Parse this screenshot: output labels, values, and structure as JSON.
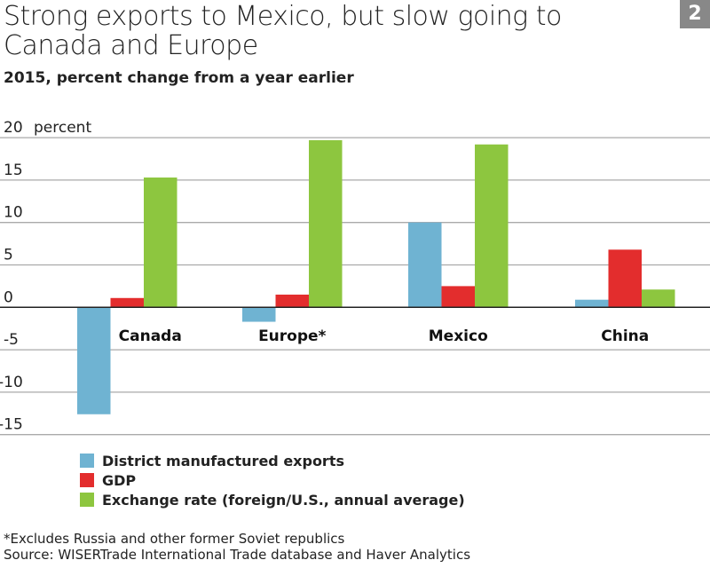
{
  "title": "Strong exports to Mexico, but slow going to Canada and Europe",
  "badge": "2",
  "chart_data": {
    "type": "bar",
    "title": "Strong exports to Mexico, but slow going to Canada and Europe",
    "subtitle": "2015, percent change from a year earlier",
    "ylabel": "percent",
    "ylim": [
      -15,
      20
    ],
    "yticks": [
      20,
      15,
      10,
      5,
      0,
      -5,
      -10,
      -15
    ],
    "grid": true,
    "categories": [
      "Canada",
      "Europe*",
      "Mexico",
      "China"
    ],
    "series": [
      {
        "name": "District manufactured exports",
        "color": "#6fb3d2",
        "values": [
          -12.6,
          -1.7,
          10.0,
          0.9
        ]
      },
      {
        "name": "GDP",
        "color": "#e32d2d",
        "values": [
          1.1,
          1.5,
          2.5,
          6.8
        ]
      },
      {
        "name": "Exchange rate (foreign/U.S., annual average)",
        "color": "#8dc63f",
        "values": [
          15.3,
          19.7,
          19.2,
          2.1
        ]
      }
    ],
    "legend": "bottom-left"
  },
  "notes": [
    "*Excludes Russia and other former Soviet republics",
    "Source: WISERTrade International Trade database and Haver Analytics"
  ]
}
